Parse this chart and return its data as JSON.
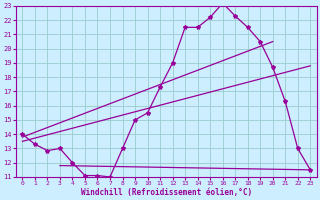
{
  "title": "",
  "xlabel": "Windchill (Refroidissement éolien,°C)",
  "ylabel": "",
  "bg_color": "#cceeff",
  "grid_color": "#99cccc",
  "line_color": "#990099",
  "xlim": [
    -0.5,
    23.5
  ],
  "ylim": [
    11,
    23
  ],
  "xticks": [
    0,
    1,
    2,
    3,
    4,
    5,
    6,
    7,
    8,
    9,
    10,
    11,
    12,
    13,
    14,
    15,
    16,
    17,
    18,
    19,
    20,
    21,
    22,
    23
  ],
  "yticks": [
    11,
    12,
    13,
    14,
    15,
    16,
    17,
    18,
    19,
    20,
    21,
    22,
    23
  ],
  "series1_x": [
    0,
    1,
    2,
    3,
    4,
    5,
    6,
    7,
    8,
    9,
    10,
    11,
    12,
    13,
    14,
    15,
    16,
    17,
    18,
    19,
    20,
    21,
    22,
    23
  ],
  "series1_y": [
    14.0,
    13.3,
    12.85,
    13.0,
    12.0,
    11.1,
    11.1,
    11.0,
    13.0,
    15.0,
    15.5,
    17.3,
    19.0,
    21.5,
    21.5,
    22.2,
    23.2,
    22.3,
    21.5,
    20.5,
    18.7,
    16.3,
    13.0,
    11.5
  ],
  "series2_x": [
    3,
    23
  ],
  "series2_y": [
    11.8,
    11.5
  ],
  "series3_x": [
    0,
    20
  ],
  "series3_y": [
    13.8,
    20.5
  ],
  "series4_x": [
    0,
    23
  ],
  "series4_y": [
    13.5,
    18.8
  ]
}
